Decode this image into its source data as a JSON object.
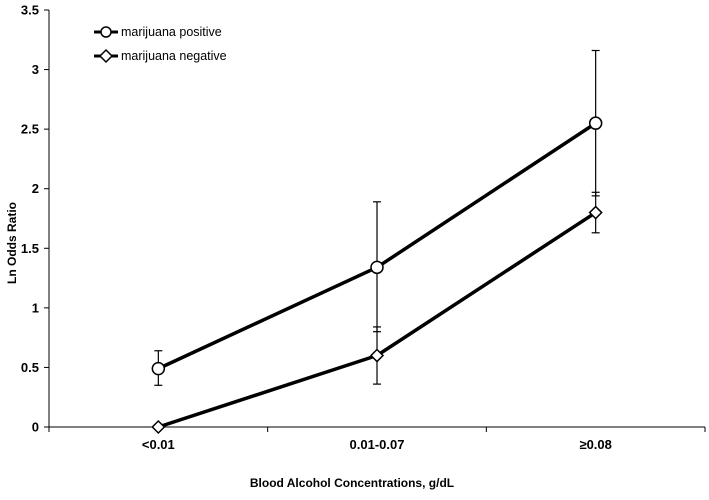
{
  "chart_data": {
    "type": "line",
    "title": "",
    "xlabel": "Blood Alcohol Concentrations, g/dL",
    "ylabel": "Ln Odds Ratio",
    "categories": [
      "<0.01",
      "0.01-0.07",
      "≥0.08"
    ],
    "ylim": [
      0,
      3.5
    ],
    "yticks": [
      "0",
      "0.5",
      "1",
      "1.5",
      "2",
      "2.5",
      "3",
      "3.5"
    ],
    "grid": false,
    "legend_position": "top-left",
    "series": [
      {
        "name": "marijuana positive",
        "marker": "circle",
        "color": "#000000",
        "values": [
          0.49,
          1.34,
          2.55
        ],
        "error_low": [
          0.35,
          0.8,
          1.94
        ],
        "error_high": [
          0.64,
          1.89,
          3.16
        ]
      },
      {
        "name": "marijuana negative",
        "marker": "diamond",
        "color": "#000000",
        "values": [
          0.0,
          0.6,
          1.8
        ],
        "error_low": [
          0.0,
          0.36,
          1.63
        ],
        "error_high": [
          0.0,
          0.84,
          1.97
        ]
      }
    ]
  }
}
